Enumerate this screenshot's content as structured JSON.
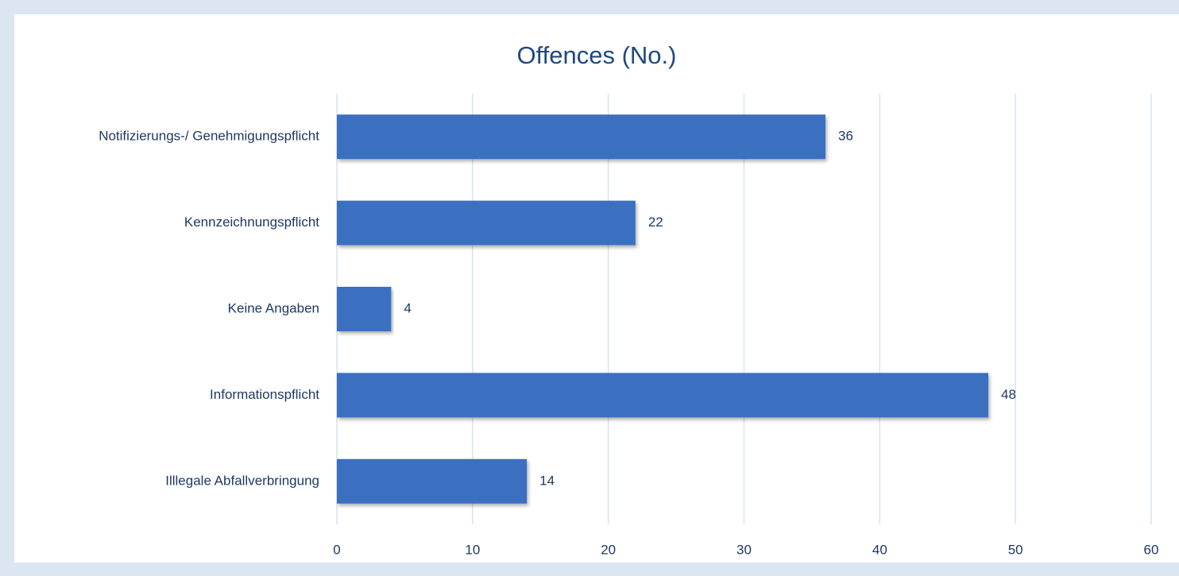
{
  "chart_data": {
    "type": "bar",
    "orientation": "horizontal",
    "title": "Offences (No.)",
    "categories": [
      "Notifizierungs-/ Genehmigungspflicht",
      "Kennzeichnungspflicht",
      "Keine Angaben",
      "Informationspflicht",
      "Illlegale Abfallverbringung"
    ],
    "values": [
      36,
      22,
      4,
      48,
      14
    ],
    "color": "#3a70c0",
    "xlim": [
      0,
      60
    ],
    "xticks": [
      0,
      10,
      20,
      30,
      40,
      50,
      60
    ],
    "grid": true
  }
}
